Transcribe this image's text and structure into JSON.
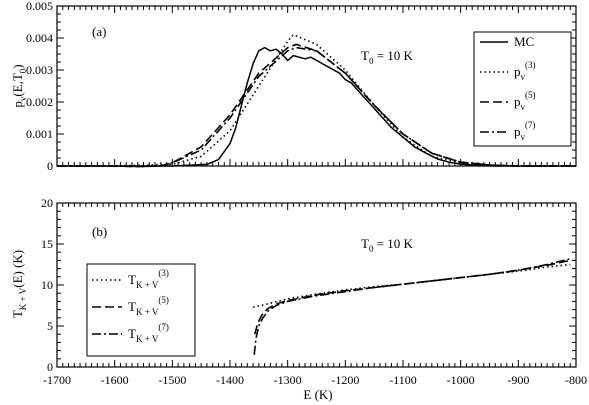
{
  "chart_data": [
    {
      "type": "line",
      "panel_label": "(a)",
      "ylabel": "p",
      "ylabel_sub": "v",
      "ylabel_rest": "(E,T",
      "ylabel_sub2": "0",
      "ylabel_end": ")",
      "annotation": "T",
      "annotation_sub": "0",
      "annotation_rest": " = 10 K",
      "xlim": [
        -1700,
        -800
      ],
      "ylim": [
        0,
        0.005
      ],
      "yticks": [
        0,
        0.001,
        0.002,
        0.003,
        0.004,
        0.005
      ],
      "ytick_labels": [
        "0",
        "0.001",
        "0.002",
        "0.003",
        "0.004",
        "0.005"
      ],
      "legend_position": "top-right",
      "series": [
        {
          "name": "MC",
          "style": "solid",
          "x": [
            -1700,
            -1600,
            -1500,
            -1440,
            -1420,
            -1400,
            -1390,
            -1380,
            -1370,
            -1360,
            -1350,
            -1340,
            -1330,
            -1320,
            -1310,
            -1300,
            -1290,
            -1280,
            -1270,
            -1260,
            -1250,
            -1240,
            -1230,
            -1220,
            -1210,
            -1200,
            -1190,
            -1180,
            -1170,
            -1160,
            -1150,
            -1140,
            -1130,
            -1120,
            -1100,
            -1080,
            -1060,
            -1040,
            -1020,
            -1000,
            -980,
            -960,
            -940,
            -900,
            -800
          ],
          "y": [
            0,
            0,
            0,
            5e-05,
            0.0002,
            0.0007,
            0.0012,
            0.0019,
            0.0026,
            0.0032,
            0.0036,
            0.0037,
            0.0036,
            0.00365,
            0.0035,
            0.0033,
            0.00345,
            0.0034,
            0.00335,
            0.0034,
            0.0033,
            0.0032,
            0.0031,
            0.003,
            0.0029,
            0.0027,
            0.0026,
            0.0024,
            0.0022,
            0.002,
            0.0018,
            0.0016,
            0.0014,
            0.0012,
            0.0009,
            0.0006,
            0.0004,
            0.00022,
            0.00012,
            6e-05,
            3e-05,
            1e-05,
            0,
            0,
            0
          ]
        },
        {
          "name": "p_v^(3)",
          "style": "dotted",
          "x": [
            -1700,
            -1600,
            -1500,
            -1450,
            -1400,
            -1350,
            -1300,
            -1290,
            -1250,
            -1200,
            -1150,
            -1100,
            -1050,
            -1000,
            -950,
            -900,
            -800
          ],
          "y": [
            0,
            0,
            5e-05,
            0.0003,
            0.0011,
            0.0025,
            0.0039,
            0.0041,
            0.0038,
            0.003,
            0.0019,
            0.0009,
            0.0003,
            0.0001,
            2e-05,
            0,
            0
          ]
        },
        {
          "name": "p_v^(5)",
          "style": "dashed",
          "x": [
            -1700,
            -1600,
            -1560,
            -1520,
            -1500,
            -1450,
            -1400,
            -1350,
            -1300,
            -1285,
            -1250,
            -1200,
            -1150,
            -1100,
            -1050,
            -1000,
            -950,
            -900,
            -800
          ],
          "y": [
            0,
            0,
            -2e-05,
            0,
            0.0001,
            0.0006,
            0.0016,
            0.0029,
            0.0037,
            0.0038,
            0.0036,
            0.0029,
            0.0019,
            0.001,
            0.0004,
            0.00012,
            3e-05,
            0,
            0
          ]
        },
        {
          "name": "p_v^(7)",
          "style": "dashdot",
          "x": [
            -1700,
            -1600,
            -1560,
            -1520,
            -1500,
            -1450,
            -1400,
            -1350,
            -1300,
            -1285,
            -1250,
            -1200,
            -1150,
            -1100,
            -1050,
            -1000,
            -950,
            -900,
            -800
          ],
          "y": [
            0,
            0,
            -2e-05,
            0,
            0.0001,
            0.0005,
            0.0015,
            0.0028,
            0.0036,
            0.0037,
            0.0036,
            0.0029,
            0.0019,
            0.001,
            0.0004,
            0.00012,
            3e-05,
            0,
            0
          ]
        }
      ],
      "legend": [
        {
          "base": "MC",
          "sub": "",
          "sup": ""
        },
        {
          "base": "p",
          "sub": "v",
          "sup": "(3)"
        },
        {
          "base": "p",
          "sub": "v",
          "sup": "(5)"
        },
        {
          "base": "p",
          "sub": "v",
          "sup": "(7)"
        }
      ]
    },
    {
      "type": "line",
      "panel_label": "(b)",
      "ylabel": "T",
      "ylabel_sub": "K + V",
      "ylabel_rest": "(E) (K)",
      "xlabel": "E (K)",
      "annotation": "T",
      "annotation_sub": "0",
      "annotation_rest": " = 10 K",
      "xlim": [
        -1700,
        -800
      ],
      "ylim": [
        0,
        20
      ],
      "xticks": [
        -1700,
        -1600,
        -1500,
        -1400,
        -1300,
        -1200,
        -1100,
        -1000,
        -900,
        -800
      ],
      "xtick_labels": [
        "-1700",
        "-1600",
        "-1500",
        "-1400",
        "-1300",
        "-1200",
        "-1100",
        "-1000",
        "-900",
        "-800"
      ],
      "yticks": [
        0,
        5,
        10,
        15,
        20
      ],
      "ytick_labels": [
        "0",
        "5",
        "10",
        "15",
        "20"
      ],
      "legend_position": "bottom-left",
      "series": [
        {
          "name": "T_K+V^(3)",
          "style": "dotted",
          "x": [
            -1360,
            -1340,
            -1300,
            -1250,
            -1200,
            -1150,
            -1100,
            -1050,
            -1000,
            -950,
            -900,
            -850,
            -810
          ],
          "y": [
            7.3,
            7.6,
            8.3,
            8.9,
            9.4,
            9.8,
            10.1,
            10.5,
            10.9,
            11.3,
            11.7,
            12.2,
            12.5
          ]
        },
        {
          "name": "T_K+V^(5)",
          "style": "dashed",
          "x": [
            -1357,
            -1352,
            -1345,
            -1335,
            -1320,
            -1300,
            -1250,
            -1200,
            -1150,
            -1100,
            -1050,
            -1000,
            -950,
            -900,
            -850,
            -810
          ],
          "y": [
            4.0,
            5.3,
            6.3,
            7.1,
            7.7,
            8.1,
            8.8,
            9.3,
            9.7,
            10.1,
            10.5,
            10.9,
            11.3,
            11.8,
            12.4,
            13.0
          ]
        },
        {
          "name": "T_K+V^(7)",
          "style": "dashdot",
          "x": [
            -1358,
            -1355,
            -1350,
            -1343,
            -1333,
            -1320,
            -1300,
            -1250,
            -1200,
            -1150,
            -1100,
            -1050,
            -1000,
            -950,
            -900,
            -850,
            -810
          ],
          "y": [
            1.5,
            3.5,
            5.0,
            6.0,
            6.9,
            7.5,
            8.0,
            8.7,
            9.2,
            9.7,
            10.1,
            10.5,
            10.9,
            11.3,
            11.8,
            12.5,
            13.2
          ]
        }
      ],
      "legend": [
        {
          "base": "T",
          "sub": "K + V",
          "sup": "(3)"
        },
        {
          "base": "T",
          "sub": "K + V",
          "sup": "(5)"
        },
        {
          "base": "T",
          "sub": "K + V",
          "sup": "(7)"
        }
      ]
    }
  ]
}
